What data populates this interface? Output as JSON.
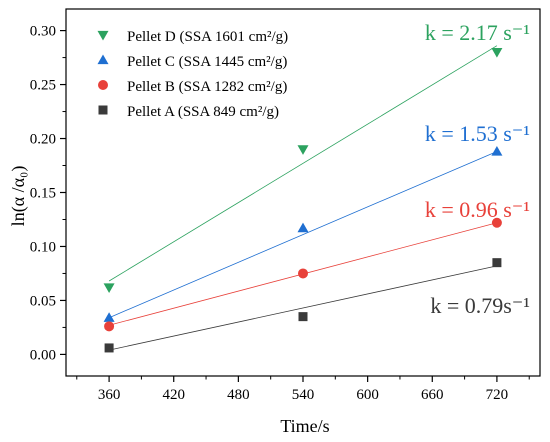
{
  "chart_data": {
    "type": "scatter",
    "xlabel": "Time/s",
    "ylabel": "ln(α /α₀)",
    "xlim": [
      320,
      760
    ],
    "ylim": [
      -0.02,
      0.32
    ],
    "x_ticks": [
      360,
      420,
      480,
      540,
      600,
      660,
      720
    ],
    "y_ticks": [
      0.0,
      0.05,
      0.1,
      0.15,
      0.2,
      0.25,
      0.3
    ],
    "x_tick_labels": [
      "360",
      "420",
      "480",
      "540",
      "600",
      "660",
      "720"
    ],
    "y_tick_labels": [
      "0.00",
      "0.05",
      "0.10",
      "0.15",
      "0.20",
      "0.25",
      "0.30"
    ],
    "grid": false,
    "legend_position": "top-left",
    "series": [
      {
        "name": "Pellet D (SSA 1601 cm²/g)",
        "marker": "triangle-down",
        "color": "#2ca25f",
        "x": [
          360,
          540,
          720
        ],
        "y": [
          0.062,
          0.19,
          0.28
        ],
        "fit": [
          0.068,
          0.286
        ],
        "k_label": "k = 2.17 s⁻¹"
      },
      {
        "name": "Pellet C (SSA 1445 cm²/g)",
        "marker": "triangle-up",
        "color": "#1f6fd1",
        "x": [
          360,
          540,
          720
        ],
        "y": [
          0.034,
          0.117,
          0.188
        ],
        "fit": [
          0.034,
          0.188
        ],
        "k_label": "k = 1.53 s⁻¹"
      },
      {
        "name": "Pellet B (SSA 1282 cm²/g)",
        "marker": "circle",
        "color": "#e8413a",
        "x": [
          360,
          540,
          720
        ],
        "y": [
          0.026,
          0.075,
          0.122
        ],
        "fit": [
          0.027,
          0.122
        ],
        "k_label": "k = 0.96 s⁻¹"
      },
      {
        "name": "Pellet A (SSA 849 cm²/g)",
        "marker": "square",
        "color": "#3a3a3a",
        "x": [
          360,
          540,
          720
        ],
        "y": [
          0.006,
          0.035,
          0.085
        ],
        "fit": [
          0.004,
          0.082
        ],
        "k_label": "k = 0.79s⁻¹"
      }
    ]
  }
}
